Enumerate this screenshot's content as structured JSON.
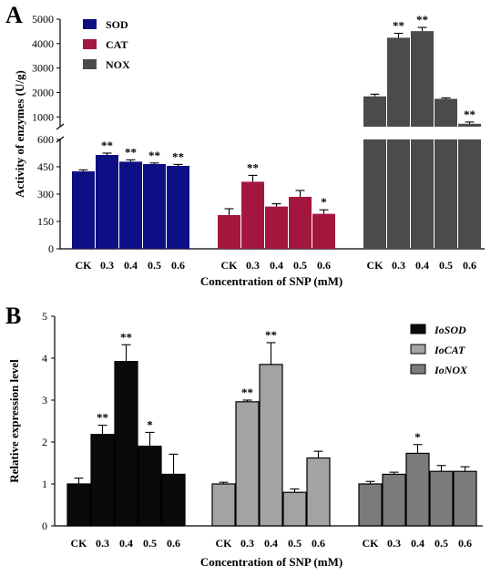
{
  "panel_labels": [
    "A",
    "B"
  ],
  "colors": {
    "SOD_A": "#0f0f85",
    "CAT_A": "#a3173f",
    "NOX_A": "#4b4b4b",
    "IoSOD_B": "#0a0a0a",
    "IoCAT_B": "#a3a3a3",
    "IoNOX_B": "#7b7b7b"
  },
  "chart_data": [
    {
      "panel": "A",
      "type": "bar",
      "ylabel": "Activity of enzymes (U/g)",
      "xlabel": "Concentration of SNP (mM)",
      "categories": [
        "CK",
        "0.3",
        "0.4",
        "0.5",
        "0.6"
      ],
      "axis_break": {
        "lower_range": [
          0,
          600
        ],
        "upper_range": [
          600,
          5000
        ]
      },
      "lower_ticks": [
        "0",
        "150",
        "300",
        "450",
        "600"
      ],
      "upper_ticks": [
        "1000",
        "2000",
        "3000",
        "4000",
        "5000"
      ],
      "legend_position": "top-left",
      "series": [
        {
          "name": "SOD",
          "values": [
            425,
            515,
            478,
            465,
            455
          ],
          "errors": [
            8,
            10,
            10,
            6,
            8
          ],
          "significance": [
            "",
            "**",
            "**",
            "**",
            "**"
          ]
        },
        {
          "name": "CAT",
          "values": [
            185,
            368,
            232,
            285,
            192
          ],
          "errors": [
            35,
            35,
            15,
            35,
            22
          ],
          "significance": [
            "",
            "**",
            "",
            "",
            "*"
          ]
        },
        {
          "name": "NOX",
          "values": [
            1840,
            4240,
            4510,
            1740,
            720
          ],
          "errors": [
            90,
            180,
            150,
            40,
            70
          ],
          "significance": [
            "",
            "**",
            "**",
            "",
            "**"
          ]
        }
      ]
    },
    {
      "panel": "B",
      "type": "bar",
      "ylabel": "Relative expression level",
      "xlabel": "Concentration of SNP (mM)",
      "categories": [
        "CK",
        "0.3",
        "0.4",
        "0.5",
        "0.6"
      ],
      "ylim": [
        0,
        5
      ],
      "ticks": [
        "0",
        "1",
        "2",
        "3",
        "4",
        "5"
      ],
      "legend_position": "top-right",
      "series": [
        {
          "name": "IoSOD",
          "values": [
            1.0,
            2.18,
            3.92,
            1.9,
            1.23
          ],
          "errors": [
            0.14,
            0.22,
            0.4,
            0.33,
            0.48
          ],
          "significance": [
            "",
            "**",
            "**",
            "*",
            ""
          ]
        },
        {
          "name": "IoCAT",
          "values": [
            1.0,
            2.96,
            3.85,
            0.8,
            1.62
          ],
          "errors": [
            0.04,
            0.04,
            0.52,
            0.08,
            0.16
          ],
          "significance": [
            "",
            "**",
            "**",
            "",
            ""
          ]
        },
        {
          "name": "IoNOX",
          "values": [
            1.0,
            1.23,
            1.73,
            1.3,
            1.3
          ],
          "errors": [
            0.06,
            0.05,
            0.21,
            0.14,
            0.11
          ],
          "significance": [
            "",
            "",
            "*",
            "",
            ""
          ]
        }
      ]
    }
  ]
}
